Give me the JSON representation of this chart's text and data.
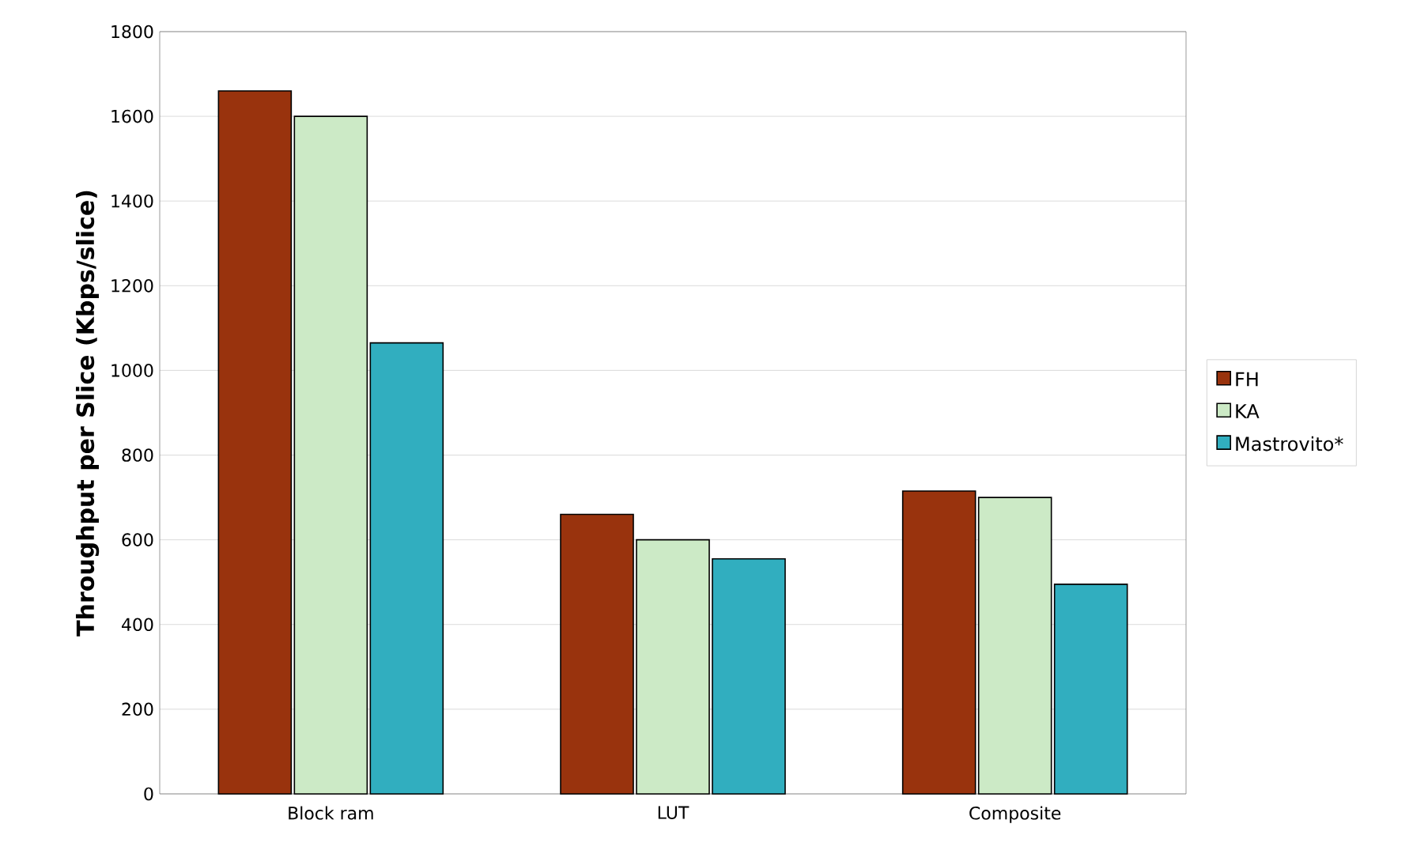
{
  "chart_data": {
    "type": "bar",
    "ylabel": "Throughput per Slice (Kbps/slice)",
    "categories": [
      "Block ram",
      "LUT",
      "Composite"
    ],
    "series": [
      {
        "name": "FH",
        "color": "#99330d",
        "values": [
          1660,
          660,
          715
        ]
      },
      {
        "name": "KA",
        "color": "#cceac6",
        "values": [
          1600,
          600,
          700
        ]
      },
      {
        "name": "Mastrovito*",
        "color": "#31aebf",
        "values": [
          1065,
          555,
          495
        ]
      }
    ],
    "ylim": [
      0,
      1800
    ],
    "yticks": [
      0,
      200,
      400,
      600,
      800,
      1000,
      1200,
      1400,
      1600,
      1800
    ],
    "grid": "y",
    "legend": "right"
  }
}
